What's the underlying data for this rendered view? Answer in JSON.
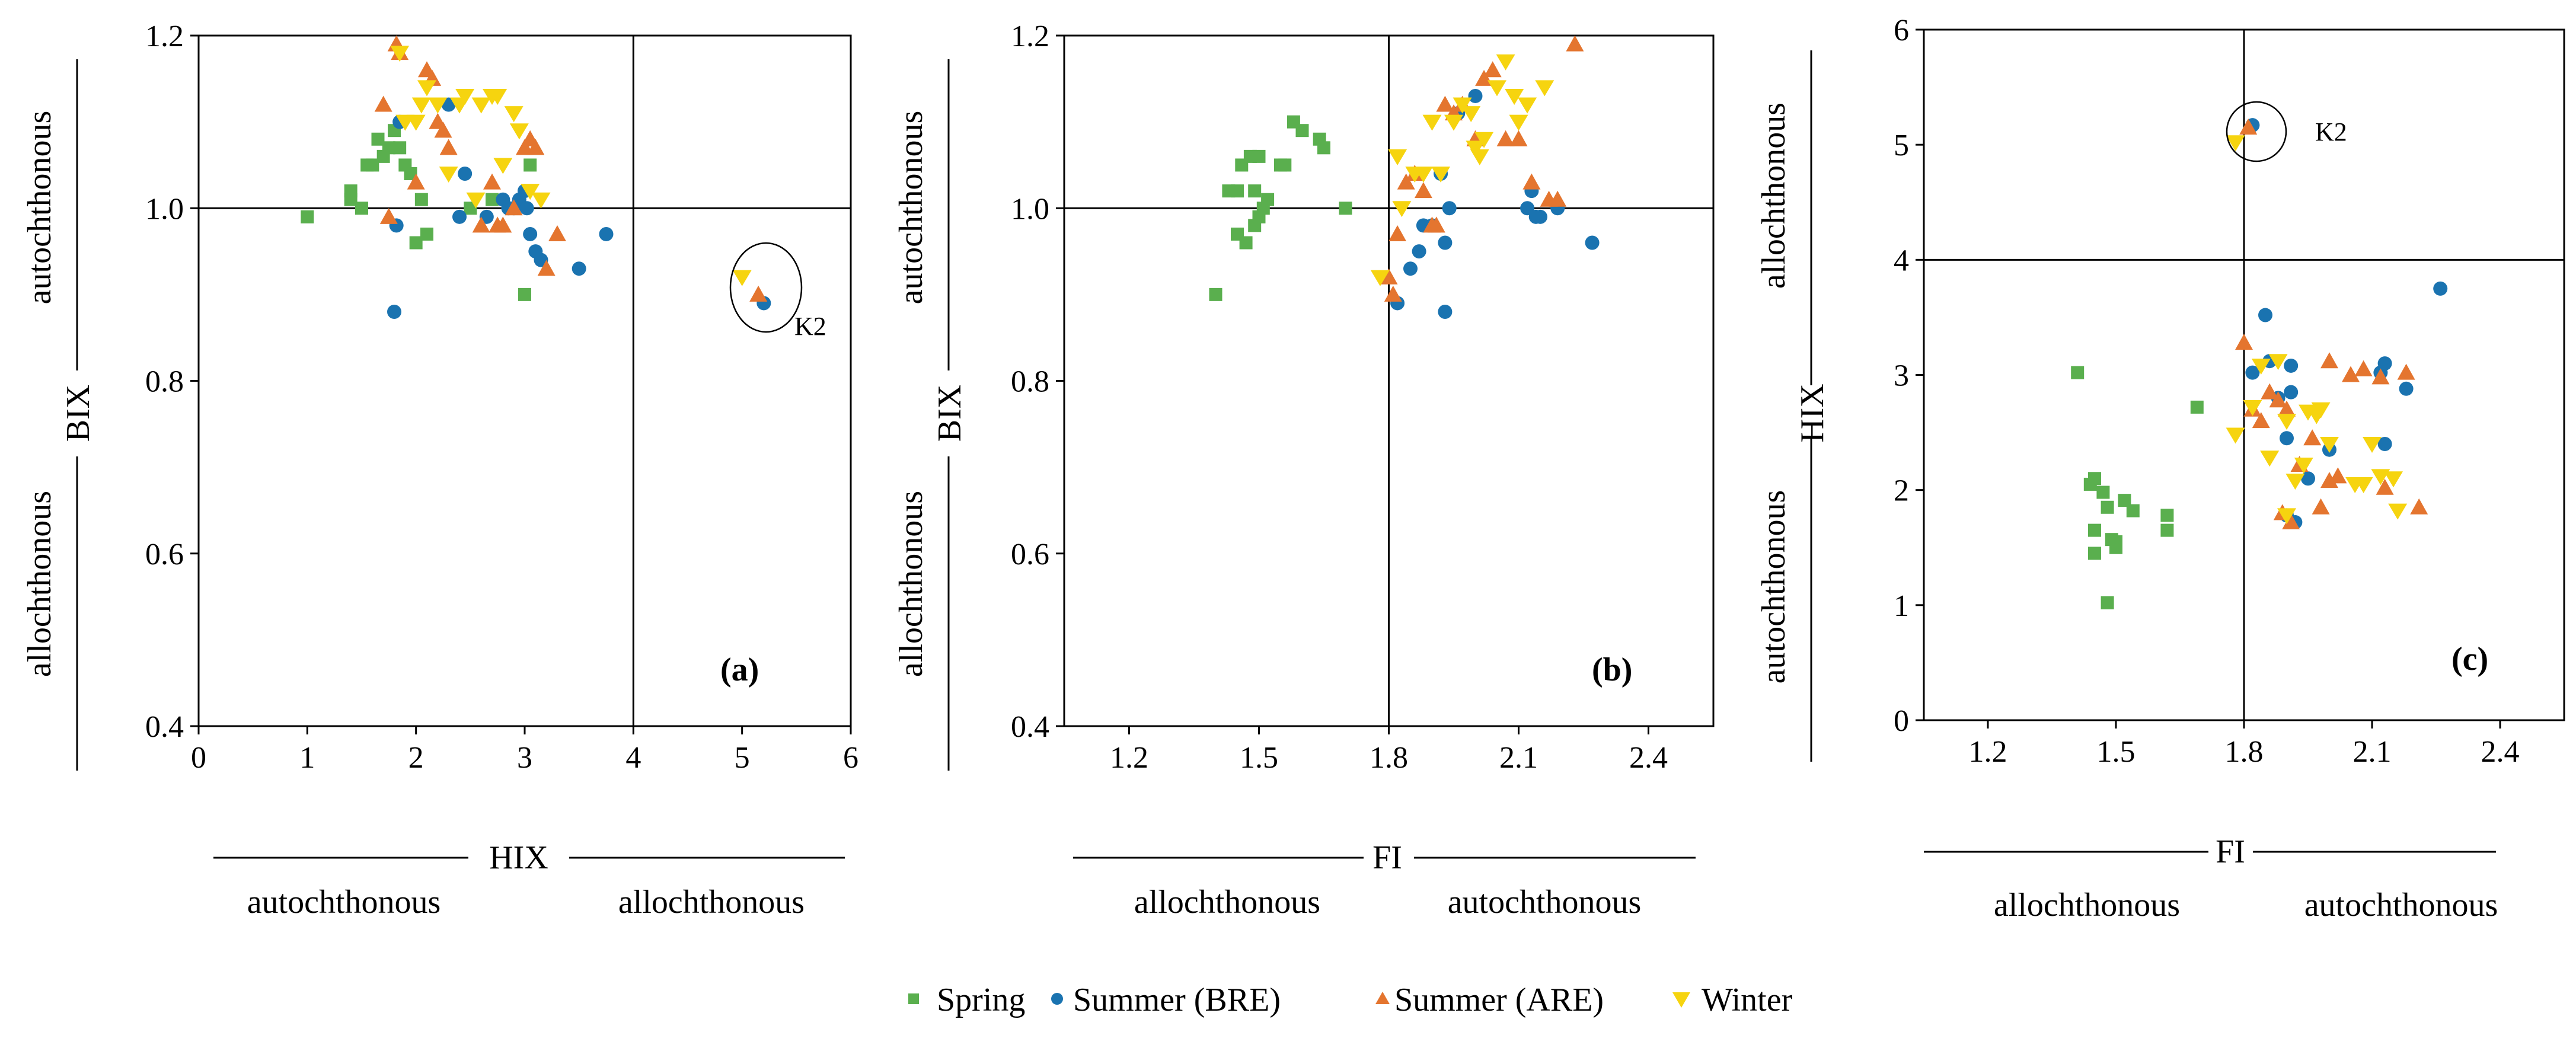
{
  "legend": [
    {
      "key": "spring",
      "label": "Spring",
      "marker": "square",
      "color": "#5aaf4e"
    },
    {
      "key": "summer_bre",
      "label": "Summer (BRE)",
      "marker": "circle",
      "color": "#1a73b0"
    },
    {
      "key": "summer_are",
      "label": "Summer (ARE)",
      "marker": "triangle-up",
      "color": "#e4752f"
    },
    {
      "key": "winter",
      "label": "Winter",
      "marker": "triangle-down",
      "color": "#f6d40f"
    }
  ],
  "chart_data": [
    {
      "id": "a",
      "type": "scatter",
      "panel_label": "(a)",
      "xlabel": "HIX",
      "ylabel": "BIX",
      "xlim": [
        0,
        6
      ],
      "ylim": [
        0.4,
        1.2
      ],
      "xticks": [
        "0",
        "1",
        "2",
        "3",
        "4",
        "5",
        "6"
      ],
      "yticks": [
        "0.4",
        "0.6",
        "0.8",
        "1.0",
        "1.2"
      ],
      "xtick_values": [
        0,
        1,
        2,
        3,
        4,
        5,
        6
      ],
      "ytick_values": [
        0.4,
        0.6,
        0.8,
        1.0,
        1.2
      ],
      "threshold_x": 4,
      "threshold_y": 1.0,
      "x_region_labels": {
        "low": "autochthonous",
        "high": "allochthonous"
      },
      "y_region_labels": {
        "high": "autochthonous",
        "low": "allochthonous"
      },
      "annotation": {
        "text": "K2",
        "x": 5.08,
        "y": 0.91
      },
      "series": [
        {
          "name": "Spring",
          "points": [
            [
              1.0,
              0.99
            ],
            [
              1.4,
              1.02
            ],
            [
              1.4,
              1.01
            ],
            [
              1.5,
              1.0
            ],
            [
              1.55,
              1.05
            ],
            [
              1.6,
              1.05
            ],
            [
              1.65,
              1.08
            ],
            [
              1.7,
              1.06
            ],
            [
              1.75,
              1.07
            ],
            [
              1.8,
              1.09
            ],
            [
              1.85,
              1.07
            ],
            [
              1.9,
              1.05
            ],
            [
              1.95,
              1.04
            ],
            [
              2.0,
              0.96
            ],
            [
              2.05,
              1.01
            ],
            [
              2.1,
              0.97
            ],
            [
              2.5,
              1.0
            ],
            [
              2.7,
              1.01
            ],
            [
              3.0,
              0.9
            ],
            [
              3.05,
              1.05
            ]
          ]
        },
        {
          "name": "Summer (BRE)",
          "points": [
            [
              1.8,
              0.88
            ],
            [
              1.82,
              0.98
            ],
            [
              1.85,
              1.1
            ],
            [
              2.3,
              1.12
            ],
            [
              2.4,
              0.99
            ],
            [
              2.45,
              1.04
            ],
            [
              2.65,
              0.99
            ],
            [
              2.8,
              1.01
            ],
            [
              2.85,
              1.0
            ],
            [
              2.9,
              1.0
            ],
            [
              2.95,
              1.01
            ],
            [
              3.0,
              1.02
            ],
            [
              3.02,
              1.0
            ],
            [
              3.05,
              0.97
            ],
            [
              3.1,
              0.95
            ],
            [
              3.15,
              0.94
            ],
            [
              3.5,
              0.93
            ],
            [
              3.75,
              0.97
            ],
            [
              5.2,
              0.89
            ]
          ]
        },
        {
          "name": "Summer (ARE)",
          "points": [
            [
              1.7,
              1.12
            ],
            [
              1.75,
              0.99
            ],
            [
              1.82,
              1.19
            ],
            [
              1.85,
              1.18
            ],
            [
              2.0,
              1.03
            ],
            [
              2.1,
              1.16
            ],
            [
              2.15,
              1.15
            ],
            [
              2.2,
              1.1
            ],
            [
              2.25,
              1.09
            ],
            [
              2.3,
              1.07
            ],
            [
              2.6,
              0.98
            ],
            [
              2.7,
              1.03
            ],
            [
              2.75,
              0.98
            ],
            [
              2.8,
              0.98
            ],
            [
              2.9,
              1.0
            ],
            [
              3.0,
              1.07
            ],
            [
              3.05,
              1.08
            ],
            [
              3.1,
              1.07
            ],
            [
              3.2,
              0.93
            ],
            [
              3.3,
              0.97
            ],
            [
              5.15,
              0.9
            ]
          ]
        },
        {
          "name": "Winter",
          "points": [
            [
              1.85,
              1.18
            ],
            [
              1.9,
              1.1
            ],
            [
              2.0,
              1.1
            ],
            [
              2.05,
              1.12
            ],
            [
              2.1,
              1.14
            ],
            [
              2.2,
              1.12
            ],
            [
              2.3,
              1.04
            ],
            [
              2.4,
              1.12
            ],
            [
              2.45,
              1.13
            ],
            [
              2.55,
              1.01
            ],
            [
              2.6,
              1.12
            ],
            [
              2.7,
              1.13
            ],
            [
              2.75,
              1.13
            ],
            [
              2.8,
              1.05
            ],
            [
              2.9,
              1.11
            ],
            [
              2.95,
              1.09
            ],
            [
              3.05,
              1.02
            ],
            [
              3.15,
              1.01
            ],
            [
              5.0,
              0.92
            ]
          ]
        }
      ]
    },
    {
      "id": "b",
      "type": "scatter",
      "panel_label": "(b)",
      "xlabel": "FI",
      "ylabel": "BIX",
      "xlim": [
        1.05,
        2.55
      ],
      "ylim": [
        0.4,
        1.2
      ],
      "xticks": [
        "1.2",
        "1.5",
        "1.8",
        "2.1",
        "2.4"
      ],
      "yticks": [
        "0.4",
        "0.6",
        "0.8",
        "1.0",
        "1.2"
      ],
      "xtick_values": [
        1.2,
        1.5,
        1.8,
        2.1,
        2.4
      ],
      "ytick_values": [
        0.4,
        0.6,
        0.8,
        1.0,
        1.2
      ],
      "threshold_x": 1.8,
      "threshold_y": 1.0,
      "x_region_labels": {
        "low": "allochthonous",
        "high": "autochthonous"
      },
      "y_region_labels": {
        "high": "autochthonous",
        "low": "allochthonous"
      },
      "series": [
        {
          "name": "Spring",
          "points": [
            [
              1.4,
              0.9
            ],
            [
              1.43,
              1.02
            ],
            [
              1.45,
              1.02
            ],
            [
              1.45,
              0.97
            ],
            [
              1.46,
              1.05
            ],
            [
              1.47,
              0.96
            ],
            [
              1.48,
              1.06
            ],
            [
              1.49,
              1.02
            ],
            [
              1.49,
              0.98
            ],
            [
              1.5,
              0.99
            ],
            [
              1.5,
              1.06
            ],
            [
              1.51,
              1.0
            ],
            [
              1.52,
              1.01
            ],
            [
              1.55,
              1.05
            ],
            [
              1.56,
              1.05
            ],
            [
              1.58,
              1.1
            ],
            [
              1.6,
              1.09
            ],
            [
              1.64,
              1.08
            ],
            [
              1.65,
              1.07
            ],
            [
              1.7,
              1.0
            ]
          ]
        },
        {
          "name": "Summer (BRE)",
          "points": [
            [
              1.82,
              0.89
            ],
            [
              1.85,
              0.93
            ],
            [
              1.87,
              0.95
            ],
            [
              1.88,
              0.98
            ],
            [
              1.9,
              0.98
            ],
            [
              1.92,
              1.04
            ],
            [
              1.93,
              0.88
            ],
            [
              1.93,
              0.96
            ],
            [
              1.94,
              1.0
            ],
            [
              1.96,
              1.11
            ],
            [
              2.0,
              1.13
            ],
            [
              2.12,
              1.0
            ],
            [
              2.13,
              1.02
            ],
            [
              2.14,
              0.99
            ],
            [
              2.15,
              0.99
            ],
            [
              2.19,
              1.0
            ],
            [
              2.27,
              0.96
            ]
          ]
        },
        {
          "name": "Summer (ARE)",
          "points": [
            [
              1.8,
              0.92
            ],
            [
              1.81,
              0.9
            ],
            [
              1.82,
              0.97
            ],
            [
              1.84,
              1.03
            ],
            [
              1.86,
              1.04
            ],
            [
              1.88,
              1.02
            ],
            [
              1.9,
              0.98
            ],
            [
              1.91,
              0.98
            ],
            [
              1.93,
              1.12
            ],
            [
              1.95,
              1.11
            ],
            [
              1.97,
              1.12
            ],
            [
              2.0,
              1.08
            ],
            [
              2.02,
              1.15
            ],
            [
              2.04,
              1.16
            ],
            [
              2.07,
              1.08
            ],
            [
              2.1,
              1.08
            ],
            [
              2.13,
              1.03
            ],
            [
              2.17,
              1.01
            ],
            [
              2.19,
              1.01
            ],
            [
              2.23,
              1.19
            ]
          ]
        },
        {
          "name": "Winter",
          "points": [
            [
              1.78,
              0.92
            ],
            [
              1.82,
              1.06
            ],
            [
              1.83,
              1.0
            ],
            [
              1.86,
              1.04
            ],
            [
              1.88,
              1.04
            ],
            [
              1.9,
              1.1
            ],
            [
              1.92,
              1.04
            ],
            [
              1.95,
              1.1
            ],
            [
              1.97,
              1.12
            ],
            [
              1.99,
              1.11
            ],
            [
              2.0,
              1.07
            ],
            [
              2.01,
              1.06
            ],
            [
              2.02,
              1.08
            ],
            [
              2.05,
              1.14
            ],
            [
              2.07,
              1.17
            ],
            [
              2.09,
              1.13
            ],
            [
              2.1,
              1.1
            ],
            [
              2.12,
              1.12
            ],
            [
              2.16,
              1.14
            ]
          ]
        }
      ]
    },
    {
      "id": "c",
      "type": "scatter",
      "panel_label": "(c)",
      "xlabel": "FI",
      "ylabel": "HIX",
      "xlim": [
        1.05,
        2.55
      ],
      "ylim": [
        0,
        6
      ],
      "xticks": [
        "1.2",
        "1.5",
        "1.8",
        "2.1",
        "2.4"
      ],
      "yticks": [
        "0",
        "1",
        "2",
        "3",
        "4",
        "5",
        "6"
      ],
      "xtick_values": [
        1.2,
        1.5,
        1.8,
        2.1,
        2.4
      ],
      "ytick_values": [
        0,
        1,
        2,
        3,
        4,
        5,
        6
      ],
      "threshold_x": 1.8,
      "threshold_y": 4,
      "x_region_labels": {
        "low": "allochthonous",
        "high": "autochthonous"
      },
      "y_region_labels": {
        "high": "allochthonous",
        "low": "autochthonous"
      },
      "annotation": {
        "text": "K2",
        "x": 1.81,
        "y": 5.1
      },
      "series": [
        {
          "name": "Spring",
          "points": [
            [
              1.41,
              3.02
            ],
            [
              1.44,
              2.05
            ],
            [
              1.45,
              2.1
            ],
            [
              1.45,
              1.65
            ],
            [
              1.45,
              1.45
            ],
            [
              1.47,
              1.98
            ],
            [
              1.48,
              1.02
            ],
            [
              1.48,
              1.85
            ],
            [
              1.49,
              1.57
            ],
            [
              1.5,
              1.5
            ],
            [
              1.5,
              1.55
            ],
            [
              1.52,
              1.91
            ],
            [
              1.54,
              1.82
            ],
            [
              1.62,
              1.78
            ],
            [
              1.62,
              1.65
            ],
            [
              1.69,
              2.72
            ]
          ]
        },
        {
          "name": "Summer (BRE)",
          "points": [
            [
              1.82,
              5.17
            ],
            [
              1.82,
              3.02
            ],
            [
              1.85,
              3.52
            ],
            [
              1.86,
              3.12
            ],
            [
              1.88,
              2.8
            ],
            [
              1.9,
              2.45
            ],
            [
              1.9,
              1.78
            ],
            [
              1.91,
              3.08
            ],
            [
              1.91,
              2.85
            ],
            [
              1.92,
              1.72
            ],
            [
              1.95,
              2.1
            ],
            [
              2.0,
              2.35
            ],
            [
              2.12,
              3.02
            ],
            [
              2.13,
              2.4
            ],
            [
              2.13,
              3.1
            ],
            [
              2.18,
              2.88
            ],
            [
              2.26,
              3.75
            ]
          ]
        },
        {
          "name": "Summer (ARE)",
          "points": [
            [
              1.8,
              3.28
            ],
            [
              1.82,
              2.7
            ],
            [
              1.84,
              2.6
            ],
            [
              1.86,
              2.85
            ],
            [
              1.88,
              2.78
            ],
            [
              1.89,
              1.8
            ],
            [
              1.9,
              2.7
            ],
            [
              1.91,
              1.72
            ],
            [
              1.93,
              2.22
            ],
            [
              1.96,
              2.45
            ],
            [
              1.98,
              1.85
            ],
            [
              2.0,
              3.12
            ],
            [
              2.0,
              2.08
            ],
            [
              2.02,
              2.12
            ],
            [
              2.05,
              3.0
            ],
            [
              2.08,
              3.05
            ],
            [
              2.12,
              2.98
            ],
            [
              2.13,
              2.02
            ],
            [
              2.18,
              3.02
            ],
            [
              2.21,
              1.85
            ],
            [
              1.81,
              5.15
            ]
          ]
        },
        {
          "name": "Winter",
          "points": [
            [
              1.78,
              2.48
            ],
            [
              1.78,
              5.02
            ],
            [
              1.82,
              2.72
            ],
            [
              1.84,
              3.08
            ],
            [
              1.86,
              2.28
            ],
            [
              1.88,
              3.12
            ],
            [
              1.9,
              2.6
            ],
            [
              1.9,
              1.78
            ],
            [
              1.92,
              2.08
            ],
            [
              1.94,
              2.22
            ],
            [
              1.95,
              2.68
            ],
            [
              1.97,
              2.65
            ],
            [
              1.98,
              2.7
            ],
            [
              2.0,
              2.4
            ],
            [
              2.06,
              2.05
            ],
            [
              2.08,
              2.05
            ],
            [
              2.1,
              2.4
            ],
            [
              2.12,
              2.12
            ],
            [
              2.15,
              2.1
            ],
            [
              2.16,
              1.82
            ]
          ]
        }
      ]
    }
  ]
}
